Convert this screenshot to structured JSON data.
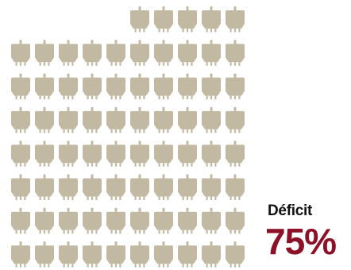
{
  "chart_data": {
    "type": "pictogram",
    "title": "",
    "label": "Déficit",
    "value_text": "75%",
    "total_units": 75,
    "full_rows": 7,
    "units_per_full_row": 10,
    "top_row_units": 5,
    "icon": "blood-bag-icon",
    "colors": {
      "icon": "#c2b9a3",
      "value": "#8c1127",
      "label": "#111111"
    }
  }
}
